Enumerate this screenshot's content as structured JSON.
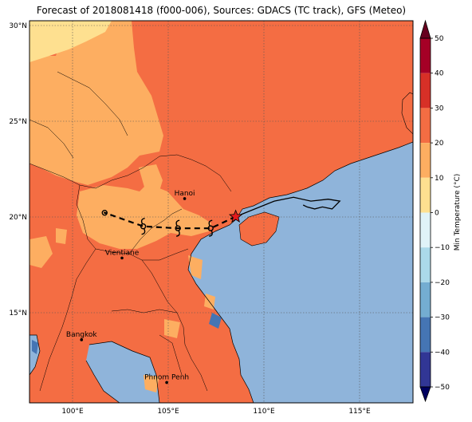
{
  "title": "Forecast of 2018081418 (f000-006), Sources: GDACS (TC track), GFS (Meteo)",
  "lat_labels": [
    "30°N",
    "25°N",
    "20°N",
    "15°N"
  ],
  "lon_labels": [
    "100°E",
    "105°E",
    "110°E",
    "115°E"
  ],
  "lat_values": [
    30,
    25,
    20,
    15
  ],
  "lon_values": [
    100,
    105,
    110,
    115
  ],
  "map_extent": {
    "lon_min": 97.8,
    "lon_max": 117.7,
    "lat_min": 10.5,
    "lat_max": 30.2
  },
  "colorbar": {
    "label": "Min Temperature (°C)",
    "ticks": [
      "50",
      "40",
      "30",
      "20",
      "10",
      "0",
      "−10",
      "−20",
      "−30",
      "−40",
      "−50"
    ],
    "tick_values": [
      50,
      40,
      30,
      20,
      10,
      0,
      -10,
      -20,
      -30,
      -40,
      -50
    ],
    "range": [
      -50,
      50
    ],
    "colors": [
      "#67001f",
      "#b2182b",
      "#d6604d",
      "#f4a582",
      "#fddbc7",
      "#f7f7f7",
      "#d1e5f0",
      "#92c5de",
      "#4393c3",
      "#2166ac",
      "#053061"
    ],
    "band_colors_top_to_bottom": [
      "#a50026",
      "#d73027",
      "#f46d43",
      "#fdae61",
      "#fee090",
      "#e0f3f8",
      "#abd9e9",
      "#74add1",
      "#4575b4",
      "#313695"
    ]
  },
  "fill_colors": {
    "sea": "#8fb4da",
    "warm": "#f46d43",
    "mild": "#fdae61",
    "cool": "#fee090",
    "cold": "#4575b4"
  },
  "cities": [
    {
      "name": "Hanoi",
      "lon": 105.85,
      "lat": 21.03
    },
    {
      "name": "Vientiane",
      "lon": 102.6,
      "lat": 17.97
    },
    {
      "name": "Bangkok",
      "lon": 100.5,
      "lat": 13.75
    },
    {
      "name": "Phnom Penh",
      "lon": 104.92,
      "lat": 11.55
    }
  ],
  "storm": {
    "current": {
      "lon": 108.5,
      "lat": 20.1
    },
    "forecast_track": [
      {
        "lon": 108.5,
        "lat": 20.1
      },
      {
        "lon": 107.2,
        "lat": 19.5
      },
      {
        "lon": 105.5,
        "lat": 19.5
      },
      {
        "lon": 103.7,
        "lat": 19.6
      },
      {
        "lon": 101.7,
        "lat": 20.3
      }
    ],
    "past_track": [
      {
        "lon": 108.5,
        "lat": 20.1
      },
      {
        "lon": 110.5,
        "lat": 20.9
      },
      {
        "lon": 111.5,
        "lat": 21.1
      },
      {
        "lon": 112.4,
        "lat": 20.9
      },
      {
        "lon": 113.3,
        "lat": 21.0
      },
      {
        "lon": 113.9,
        "lat": 20.9
      },
      {
        "lon": 113.5,
        "lat": 20.5
      },
      {
        "lon": 113.0,
        "lat": 20.6
      },
      {
        "lon": 112.6,
        "lat": 20.5
      },
      {
        "lon": 112.2,
        "lat": 20.6
      },
      {
        "lon": 112.0,
        "lat": 20.7
      }
    ],
    "symbols": [
      {
        "lon": 107.2,
        "lat": 19.5,
        "kind": "cyclone"
      },
      {
        "lon": 105.5,
        "lat": 19.5,
        "kind": "cyclone"
      },
      {
        "lon": 103.7,
        "lat": 19.6,
        "kind": "cyclone"
      },
      {
        "lon": 101.7,
        "lat": 20.3,
        "kind": "depression"
      }
    ]
  }
}
